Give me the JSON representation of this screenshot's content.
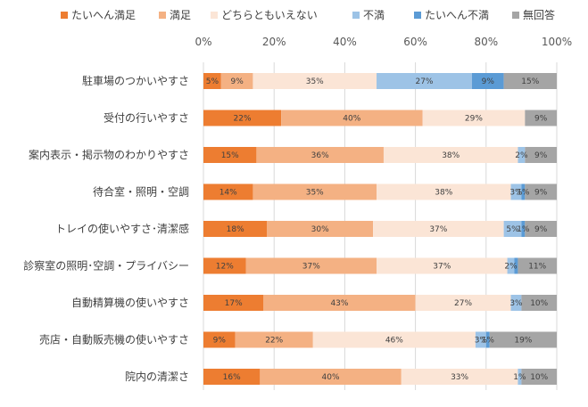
{
  "chart_data": {
    "type": "bar",
    "orientation": "horizontal",
    "stacked": "percent",
    "title": "",
    "xlabel": "",
    "ylabel": "",
    "xlim": [
      0,
      100
    ],
    "x_ticks": [
      "0%",
      "20%",
      "40%",
      "60%",
      "80%",
      "100%"
    ],
    "grid": true,
    "legend_position": "top",
    "categories": [
      "駐車場のつかいやすさ",
      "受付の行いやすさ",
      "案内表示・掲示物のわかりやすさ",
      "待合室・照明・空調",
      "トレイの使いやすさ･清潔感",
      "診察室の照明･空調・プライバシー",
      "自動精算機の使いやすさ",
      "売店・自動販売機の使いやすさ",
      "院内の清潔さ"
    ],
    "series": [
      {
        "name": "たいへん満足",
        "color": "#ED7D31",
        "values": [
          5,
          22,
          15,
          14,
          18,
          12,
          17,
          9,
          16
        ],
        "labels": [
          "5%",
          "22%",
          "15%",
          "14%",
          "18%",
          "12%",
          "17%",
          "9%",
          "16%"
        ]
      },
      {
        "name": "満足",
        "color": "#F4B183",
        "values": [
          9,
          40,
          36,
          35,
          30,
          37,
          43,
          22,
          40
        ],
        "labels": [
          "9%",
          "40%",
          "36%",
          "35%",
          "30%",
          "37%",
          "43%",
          "22%",
          "40%"
        ]
      },
      {
        "name": "どちらともいえない",
        "color": "#FBE5D6",
        "values": [
          35,
          29,
          38,
          38,
          37,
          37,
          27,
          46,
          33
        ],
        "labels": [
          "35%",
          "29%",
          "38%",
          "38%",
          "37%",
          "37%",
          "27%",
          "46%",
          "33%"
        ]
      },
      {
        "name": "不満",
        "color": "#9DC3E6",
        "values": [
          27,
          0,
          2,
          3,
          5,
          2,
          3,
          3,
          1
        ],
        "labels": [
          "27%",
          "",
          "2%",
          "3%",
          "5%",
          "2%",
          "3%",
          "3%",
          "1%"
        ]
      },
      {
        "name": "たいへん不満",
        "color": "#5B9BD5",
        "values": [
          9,
          0,
          0,
          1,
          1,
          1,
          0,
          1,
          0
        ],
        "labels": [
          "9%",
          "",
          "",
          "1%",
          "1%",
          "",
          "",
          "1%",
          ""
        ]
      },
      {
        "name": "無回答",
        "color": "#A5A5A5",
        "values": [
          15,
          9,
          9,
          9,
          9,
          11,
          10,
          19,
          10
        ],
        "labels": [
          "15%",
          "9%",
          "9%",
          "9%",
          "9%",
          "11%",
          "10%",
          "19%",
          "10%"
        ]
      }
    ]
  }
}
